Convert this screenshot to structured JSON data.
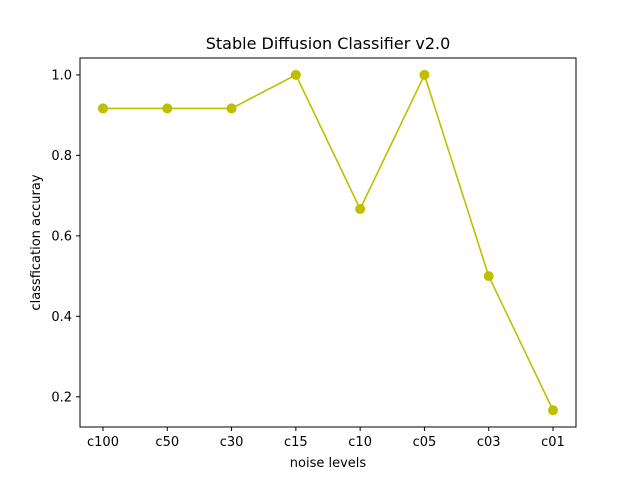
{
  "chart_data": {
    "type": "line",
    "title": "Stable Diffusion Classifier v2.0",
    "xlabel": "noise levels",
    "ylabel": "classfication accuray",
    "categories": [
      "c100",
      "c50",
      "c30",
      "c15",
      "c10",
      "c05",
      "c03",
      "c01"
    ],
    "series": [
      {
        "values": [
          0.9167,
          0.9167,
          0.9167,
          1.0,
          0.6667,
          1.0,
          0.5,
          0.1667
        ],
        "color": "#bfbf00",
        "marker": "circle"
      }
    ],
    "ylim": [
      0.125,
      1.042
    ],
    "yticks": [
      0.2,
      0.4,
      0.6,
      0.8,
      1.0
    ],
    "ytick_labels": [
      "0.2",
      "0.4",
      "0.6",
      "0.8",
      "1.0"
    ],
    "grid": false,
    "legend": false
  }
}
